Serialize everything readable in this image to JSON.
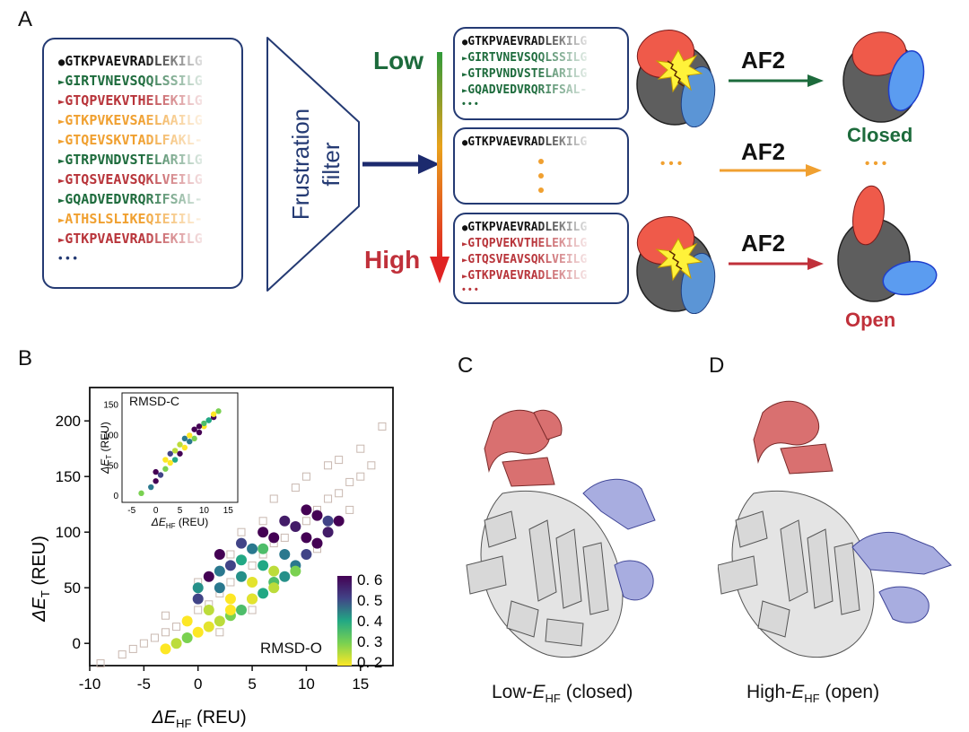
{
  "panel_a": {
    "letter": "A",
    "input_sequences": [
      {
        "marker": "●",
        "text": "GTKPVAEVRADLEKILG",
        "color": "#111111"
      },
      {
        "marker": "►",
        "text": "GIRTVNEVSQQLSSILG",
        "color": "#1d6b3c"
      },
      {
        "marker": "►",
        "text": "GTQPVEKVTHELEKILG",
        "color": "#b8343a"
      },
      {
        "marker": "►",
        "text": "GTKPVKEVSAELAAILG",
        "color": "#f0a030"
      },
      {
        "marker": "►",
        "text": "GTQEVSKVTADLFAKL-",
        "color": "#f0a030"
      },
      {
        "marker": "►",
        "text": "GTRPVNDVSTELARILG",
        "color": "#1d6b3c"
      },
      {
        "marker": "►",
        "text": "GTQSVEAVSQKLVEILG",
        "color": "#b8343a"
      },
      {
        "marker": "►",
        "text": "GQADVEDVRQRIFSAL-",
        "color": "#1d6b3c"
      },
      {
        "marker": "►",
        "text": "ATHSLSLIKEQIEIIL-",
        "color": "#f0a030"
      },
      {
        "marker": "►",
        "text": "GTKPVAEVRADLEKILG",
        "color": "#b8343a"
      }
    ],
    "input_ellipsis": "• • •",
    "filter_label_line1": "Frustration",
    "filter_label_line2": "filter",
    "low_label": "Low",
    "high_label": "High",
    "low_box": [
      {
        "marker": "●",
        "text": "GTKPVAEVRADLEKILG",
        "color": "#111111"
      },
      {
        "marker": "►",
        "text": "GIRTVNEVSQQLSSILG",
        "color": "#1d6b3c"
      },
      {
        "marker": "►",
        "text": "GTRPVNDVSTELARILG",
        "color": "#1d6b3c"
      },
      {
        "marker": "►",
        "text": "GQADVEDVRQRIFSAL-",
        "color": "#1d6b3c"
      }
    ],
    "low_ellipsis": "• • •",
    "mid_box": [
      {
        "marker": "●",
        "text": "GTKPVAEVRADLEKILG",
        "color": "#111111"
      }
    ],
    "high_box": [
      {
        "marker": "●",
        "text": "GTKPVAEVRADLEKILG",
        "color": "#111111"
      },
      {
        "marker": "►",
        "text": "GTQPVEKVTHELEKILG",
        "color": "#b8343a"
      },
      {
        "marker": "►",
        "text": "GTQSVEAVSQKLVEILG",
        "color": "#b8343a"
      },
      {
        "marker": "►",
        "text": "GTKPVAEVRADLEKILG",
        "color": "#b8343a"
      }
    ],
    "high_ellipsis": "• • •",
    "af2_label": "AF2",
    "closed_label": "Closed",
    "open_label": "Open",
    "mid_dots": "• • •",
    "colors": {
      "low": "#1d6b3c",
      "mid": "#f0a030",
      "high": "#c0303a",
      "box": "#243a73"
    }
  },
  "panel_b": {
    "letter": "B",
    "main_label": "RMSD-O",
    "inset_label": "RMSD-C",
    "colorbar_ticks": [
      "0. 6",
      "0. 5",
      "0. 4",
      "0. 3",
      "0. 2"
    ]
  },
  "panel_c": {
    "letter": "C",
    "caption_pre": "Low-",
    "caption_e": "E",
    "caption_sub": "HF",
    "caption_post": " (closed)"
  },
  "panel_d": {
    "letter": "D",
    "caption_pre": "High-",
    "caption_e": "E",
    "caption_sub": "HF",
    "caption_post": " (open)"
  },
  "chart_data": {
    "type": "scatter",
    "xlabel_delta": "ΔE",
    "xlabel_sub": "HF",
    "xlabel_unit": " (REU)",
    "ylabel_delta": "ΔE",
    "ylabel_sub": "T",
    "ylabel_unit": " (REU)",
    "xlim": [
      -10,
      18
    ],
    "ylim": [
      -20,
      230
    ],
    "xticks": [
      -10,
      -5,
      0,
      5,
      10,
      15
    ],
    "yticks": [
      0,
      50,
      100,
      150,
      200
    ],
    "colorbar": {
      "min": 0.2,
      "max": 0.6,
      "colormap": "viridis_r"
    },
    "series": [
      {
        "marker": "square-open",
        "x": [
          -9,
          -7,
          -6,
          -5,
          -4,
          -3,
          -2,
          -1,
          0,
          1,
          2,
          3,
          4,
          5,
          6,
          7,
          8,
          9,
          10,
          11,
          12,
          13,
          14,
          15,
          16,
          17,
          -3,
          0,
          3,
          6,
          9,
          12,
          15,
          2,
          5,
          8,
          11,
          14,
          4,
          7,
          10,
          13
        ],
        "y": [
          -18,
          -10,
          -5,
          0,
          5,
          10,
          15,
          20,
          30,
          35,
          45,
          55,
          60,
          70,
          80,
          90,
          95,
          105,
          110,
          120,
          130,
          135,
          145,
          150,
          160,
          195,
          25,
          55,
          80,
          110,
          140,
          160,
          175,
          10,
          30,
          60,
          85,
          120,
          100,
          130,
          150,
          165
        ]
      },
      {
        "marker": "circle",
        "name": "RMSD-O",
        "x": [
          -3,
          -2,
          -1,
          0,
          1,
          2,
          3,
          4,
          5,
          6,
          7,
          8,
          9,
          10,
          11,
          12,
          13,
          0,
          2,
          4,
          6,
          8,
          10,
          12,
          1,
          3,
          5,
          7,
          9,
          11,
          2,
          4,
          6,
          8,
          10,
          3,
          5,
          7,
          9,
          -1,
          1,
          3,
          5,
          7,
          0,
          2,
          4,
          6
        ],
        "y": [
          -5,
          0,
          5,
          10,
          15,
          20,
          25,
          30,
          40,
          45,
          55,
          60,
          70,
          80,
          90,
          100,
          110,
          40,
          50,
          60,
          70,
          80,
          95,
          110,
          60,
          70,
          85,
          95,
          105,
          115,
          80,
          90,
          100,
          110,
          120,
          30,
          40,
          50,
          65,
          20,
          30,
          40,
          55,
          65,
          50,
          65,
          75,
          85
        ],
        "c": [
          0.2,
          0.25,
          0.3,
          0.2,
          0.22,
          0.25,
          0.3,
          0.35,
          0.3,
          0.4,
          0.35,
          0.45,
          0.5,
          0.55,
          0.6,
          0.58,
          0.6,
          0.55,
          0.5,
          0.45,
          0.4,
          0.5,
          0.6,
          0.55,
          0.6,
          0.55,
          0.5,
          0.6,
          0.58,
          0.6,
          0.6,
          0.55,
          0.6,
          0.58,
          0.6,
          0.2,
          0.22,
          0.25,
          0.3,
          0.2,
          0.25,
          0.2,
          0.22,
          0.25,
          0.45,
          0.5,
          0.4,
          0.35
        ]
      }
    ],
    "inset": {
      "xlim": [
        -7,
        17
      ],
      "ylim": [
        -10,
        170
      ],
      "xticks": [
        -5,
        0,
        5,
        10,
        15
      ],
      "yticks": [
        0,
        50,
        100,
        150
      ],
      "x": [
        -3,
        -1,
        0,
        1,
        2,
        3,
        4,
        5,
        6,
        7,
        8,
        9,
        10,
        11,
        12,
        13,
        2,
        4,
        6,
        8,
        10,
        12,
        0,
        3,
        5,
        7,
        9,
        11
      ],
      "y": [
        5,
        15,
        25,
        35,
        45,
        55,
        60,
        70,
        80,
        90,
        95,
        105,
        115,
        125,
        130,
        140,
        60,
        75,
        95,
        110,
        120,
        135,
        40,
        70,
        85,
        100,
        115,
        125
      ],
      "c": [
        0.3,
        0.5,
        0.6,
        0.55,
        0.3,
        0.2,
        0.4,
        0.6,
        0.2,
        0.5,
        0.3,
        0.6,
        0.2,
        0.45,
        0.6,
        0.3,
        0.2,
        0.25,
        0.5,
        0.6,
        0.35,
        0.2,
        0.6,
        0.55,
        0.25,
        0.2,
        0.6,
        0.4
      ]
    }
  }
}
